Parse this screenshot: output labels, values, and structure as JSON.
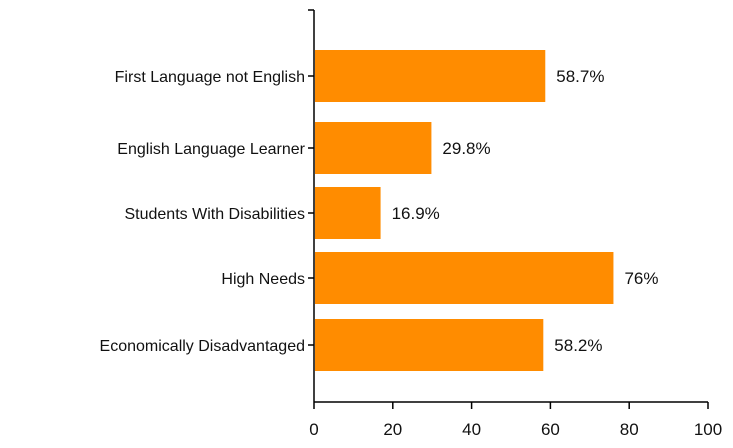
{
  "chart_data": {
    "type": "bar",
    "orientation": "horizontal",
    "categories": [
      "First Language not English",
      "English Language Learner",
      "Students With Disabilities",
      "High Needs",
      "Economically Disadvantaged"
    ],
    "values": [
      58.7,
      29.8,
      16.9,
      76,
      58.2
    ],
    "value_labels": [
      "58.7%",
      "29.8%",
      "16.9%",
      "76%",
      "58.2%"
    ],
    "xlim": [
      0,
      100
    ],
    "xticks": [
      "0",
      "20",
      "40",
      "60",
      "80",
      "100"
    ],
    "title": "",
    "xlabel": "",
    "ylabel": "",
    "grid": false,
    "legend": "none",
    "bar_color": "#FF8C00"
  }
}
